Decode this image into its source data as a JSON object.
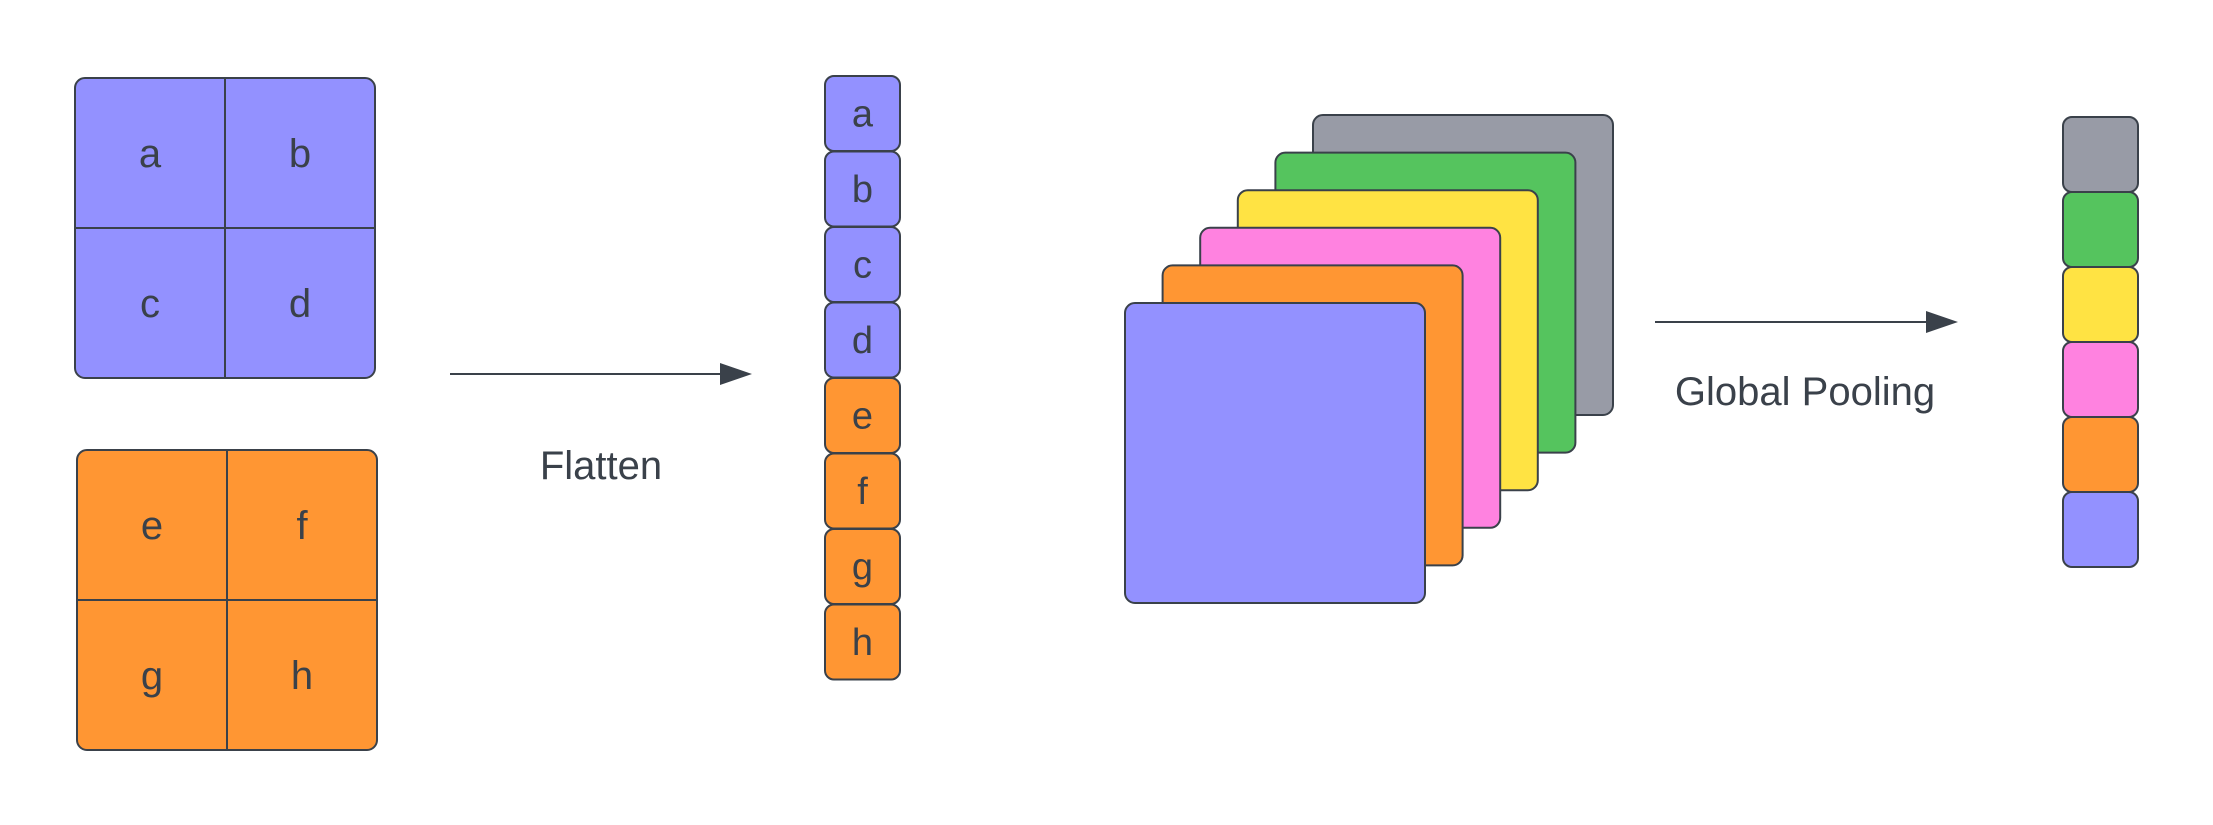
{
  "colors": {
    "purple": "#9391ff",
    "orange": "#ff9633",
    "pink": "#ff82e0",
    "yellow": "#ffe343",
    "green": "#55c45e",
    "gray": "#989ba6",
    "stroke": "#3a414a",
    "text": "#3a414a"
  },
  "grids": [
    {
      "name": "grid-purple",
      "color": "purple",
      "cells": [
        "a",
        "b",
        "c",
        "d"
      ]
    },
    {
      "name": "grid-orange",
      "color": "orange",
      "cells": [
        "e",
        "f",
        "g",
        "h"
      ]
    }
  ],
  "flatten_label": "Flatten",
  "flattened": [
    {
      "text": "a",
      "color": "purple"
    },
    {
      "text": "b",
      "color": "purple"
    },
    {
      "text": "c",
      "color": "purple"
    },
    {
      "text": "d",
      "color": "purple"
    },
    {
      "text": "e",
      "color": "orange"
    },
    {
      "text": "f",
      "color": "orange"
    },
    {
      "text": "g",
      "color": "orange"
    },
    {
      "text": "h",
      "color": "orange"
    }
  ],
  "feature_maps": [
    "gray",
    "green",
    "yellow",
    "pink",
    "orange",
    "purple"
  ],
  "pooling_label": "Global Pooling",
  "pooled": [
    "gray",
    "green",
    "yellow",
    "pink",
    "orange",
    "purple"
  ]
}
